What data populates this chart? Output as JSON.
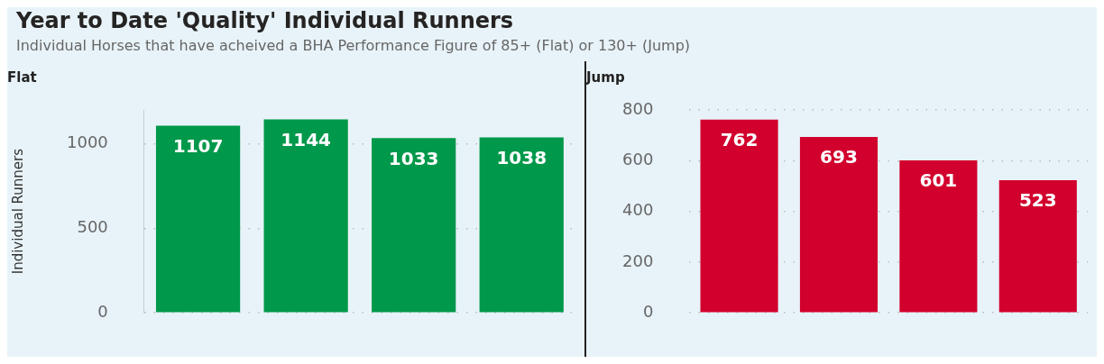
{
  "chart_data": [
    {
      "type": "other",
      "title": "Year to Date 'Quality' Individual Runners",
      "subtitle": "Individual Horses that have acheived a BHA Performance Figure of 85+ (Flat) or 130+ (Jump)"
    },
    {
      "type": "bar",
      "title": "Flat",
      "ylabel": "Individual Runners",
      "categories": [
        null,
        null,
        null,
        null
      ],
      "values": [
        1107,
        1144,
        1033,
        1038
      ],
      "color": "#00984a",
      "ylim": [
        0,
        1200
      ],
      "yticks": [
        0,
        500,
        1000
      ],
      "grid": "y",
      "data_labels": true
    },
    {
      "type": "bar",
      "title": "Jump",
      "categories": [
        null,
        null,
        null,
        null
      ],
      "values": [
        762,
        693,
        601,
        523
      ],
      "color": "#d2002d",
      "ylim": [
        0,
        800
      ],
      "yticks": [
        0,
        200,
        400,
        600,
        800
      ],
      "grid": "y",
      "data_labels": true
    }
  ]
}
